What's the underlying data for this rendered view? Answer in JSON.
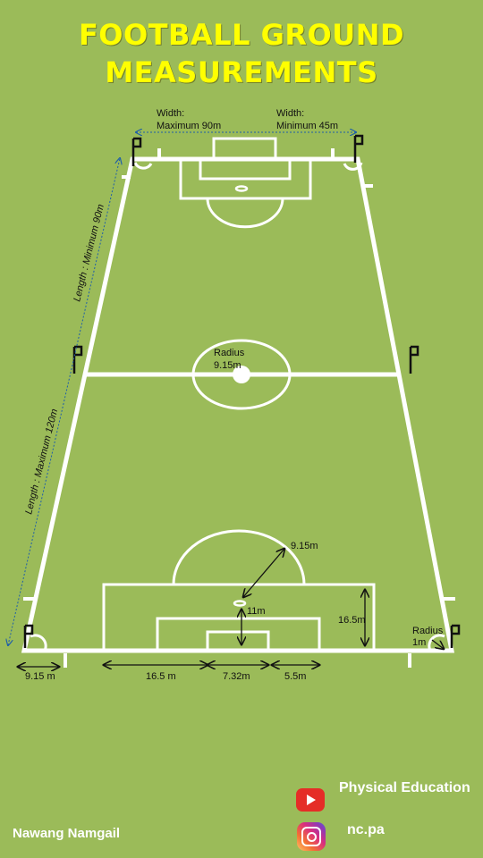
{
  "title": {
    "line1": "FOOTBALL GROUND",
    "line2": "MEASUREMENTS"
  },
  "labels": {
    "width_max_a": "Width:",
    "width_max_b": "Maximum 90m",
    "width_min_a": "Width:",
    "width_min_b": "Minimum 45m",
    "length_min": "Length : Minimum 90m",
    "length_max": "Length : Maximum 120m",
    "center_radius_a": "Radius",
    "center_radius_b": "9.15m",
    "arc_radius": "9.15m",
    "penalty_spot": "11m",
    "box_depth": "16.5m",
    "corner_radius_a": "Radius",
    "corner_radius_b": "1m",
    "dim_corner": "9.15 m",
    "dim_penalty": "16.5 m",
    "dim_goal": "7.32m",
    "dim_goal_area": "5.5m"
  },
  "credits": {
    "author": "Nawang Namgail",
    "youtube": "Physical Education",
    "instagram": "nc.pa"
  },
  "colors": {
    "background": "#9bbb59",
    "title": "#ffff00",
    "lines": "#ffffff",
    "dimension_blue": "#1f5fa8"
  },
  "icons": {
    "youtube": "youtube-icon",
    "instagram": "instagram-icon"
  }
}
